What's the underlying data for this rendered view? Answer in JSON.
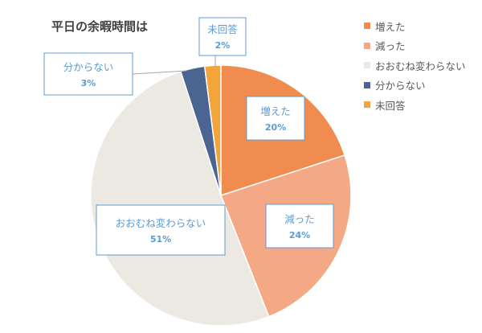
{
  "chart_data": {
    "type": "pie",
    "title": "平日の余暇時間は",
    "slices": [
      {
        "label": "増えた",
        "value": 20,
        "pct_label": "20%",
        "color": "#f08c50"
      },
      {
        "label": "減った",
        "value": 24,
        "pct_label": "24%",
        "color": "#f4a886"
      },
      {
        "label": "おおむね変わらない",
        "value": 51,
        "pct_label": "51%",
        "color": "#ebe9e1"
      },
      {
        "label": "分からない",
        "value": 3,
        "pct_label": "3%",
        "color": "#4a6592"
      },
      {
        "label": "未回答",
        "value": 2,
        "pct_label": "2%",
        "color": "#f3a43a"
      }
    ],
    "legend_position": "right",
    "data_label_color": "#5b9bd5"
  }
}
